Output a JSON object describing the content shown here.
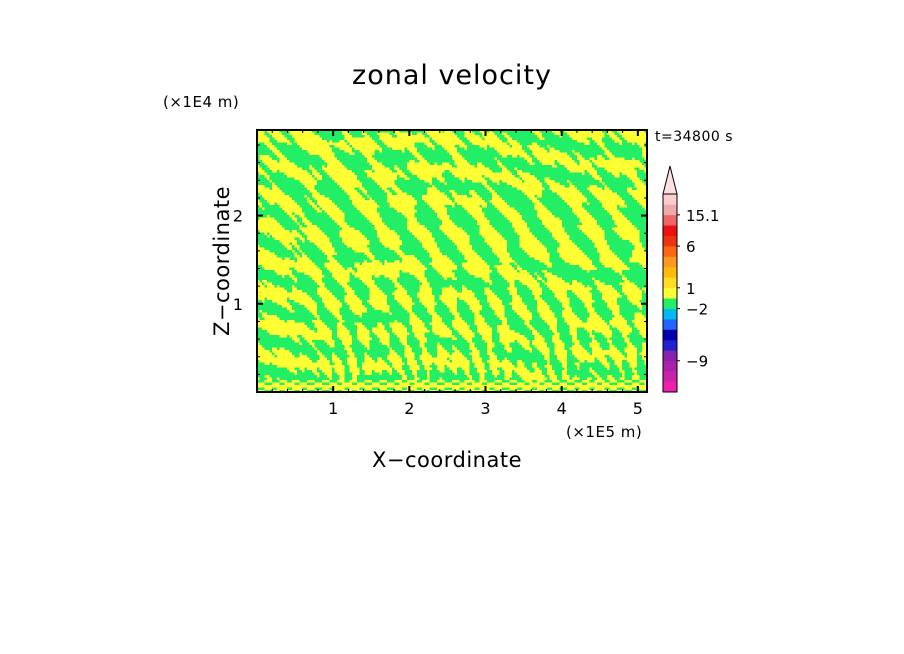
{
  "chart_data": {
    "type": "heatmap",
    "title": "zonal velocity",
    "xlabel": "X−coordinate",
    "ylabel": "Z−coordinate",
    "x_unit": "(×1E5 m)",
    "y_unit": "(×1E4 m)",
    "time_label": "t=34800 s",
    "xlim": [
      0,
      5.12
    ],
    "ylim": [
      0,
      2.97
    ],
    "xticks": [
      1,
      2,
      3,
      4,
      5
    ],
    "yticks": [
      1,
      2
    ],
    "xtick_labels": [
      "1",
      "2",
      "3",
      "4",
      "5"
    ],
    "ytick_labels": [
      "1",
      "2"
    ],
    "field_colors": {
      "positive": "#ffff33",
      "negative": "#22ee66"
    },
    "colorbar": {
      "colors": [
        "#ee22aa",
        "#cc22aa",
        "#aa22aa",
        "#8822aa",
        "#2222cc",
        "#0000aa",
        "#2266ff",
        "#00bbee",
        "#22ee66",
        "#ffff33",
        "#ffdd22",
        "#ffbb11",
        "#ff9922",
        "#ff6611",
        "#ee3311",
        "#ee1111",
        "#ee6666",
        "#eeaaaa",
        "#ffcccc"
      ],
      "labels": [
        {
          "text": "15.1",
          "level": 17
        },
        {
          "text": "6",
          "level": 14
        },
        {
          "text": "1",
          "level": 10
        },
        {
          "text": "−2",
          "level": 8
        },
        {
          "text": "−9",
          "level": 3
        }
      ],
      "overflow_triangle": true
    }
  }
}
